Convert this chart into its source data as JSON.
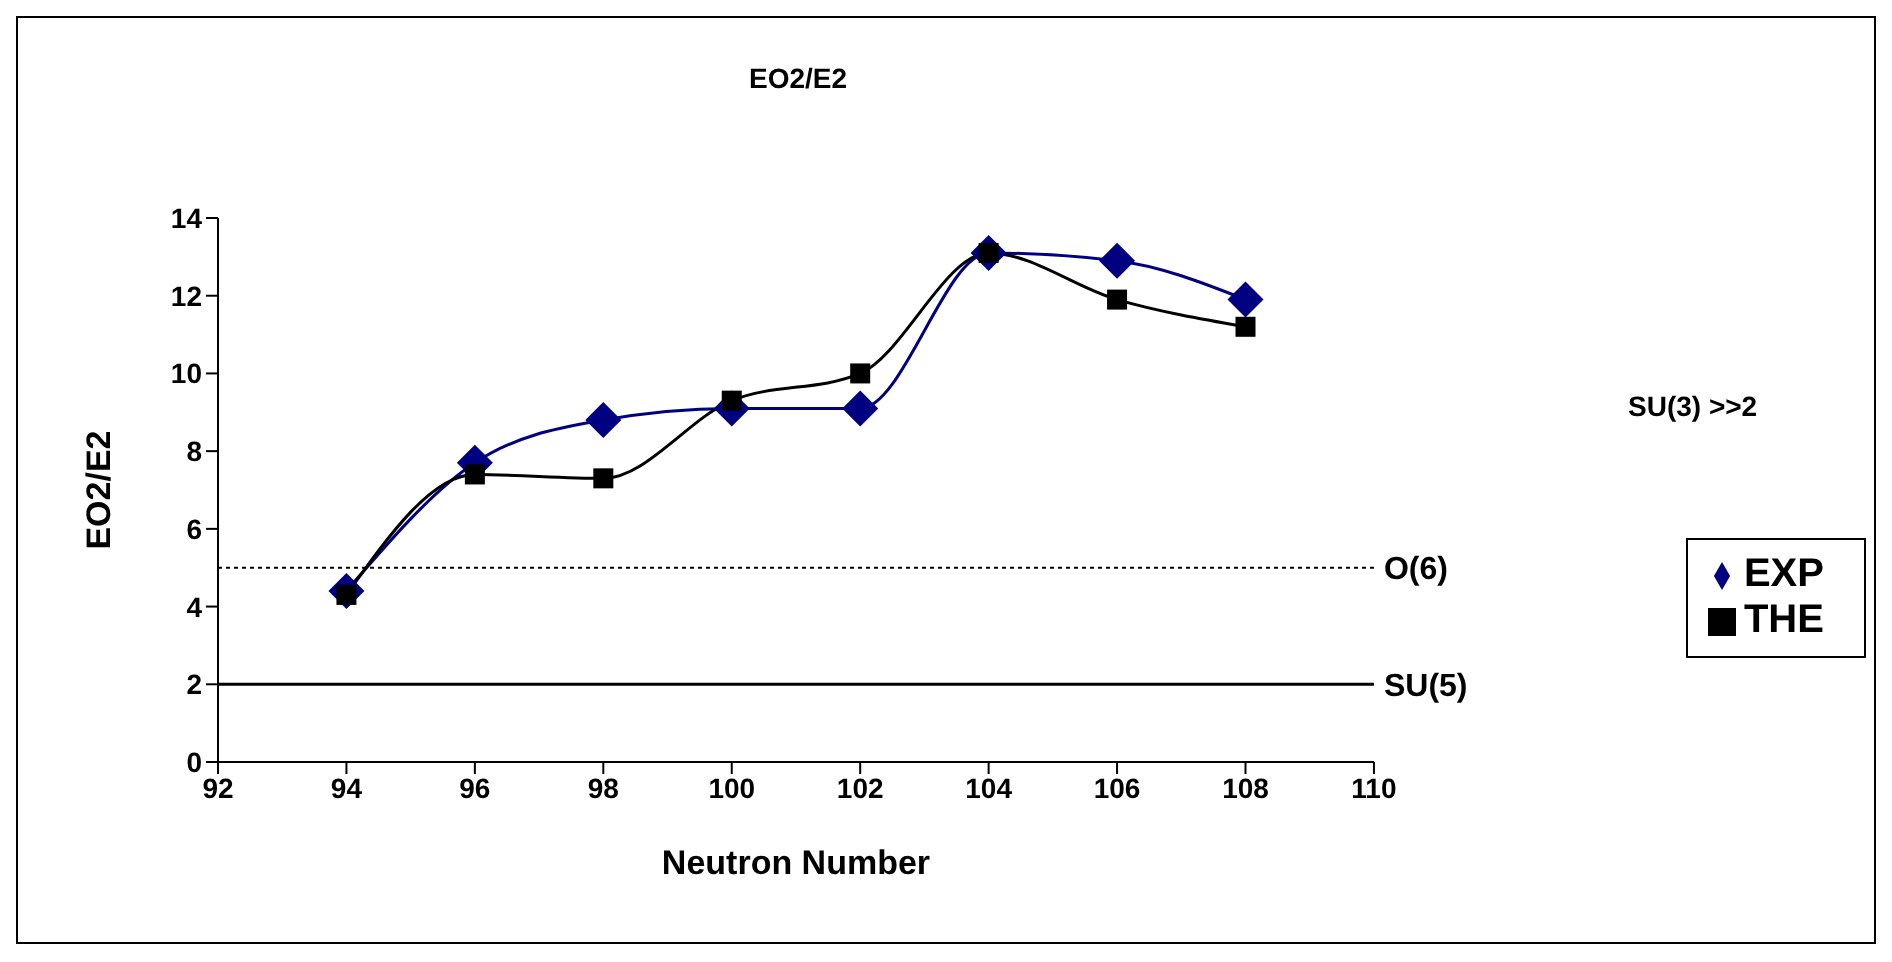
{
  "chart_data": {
    "type": "line",
    "title": "EO2/E2",
    "xlabel": "Neutron Number",
    "ylabel": "EO2/E2",
    "x": [
      94,
      96,
      98,
      100,
      102,
      104,
      106,
      108
    ],
    "series": [
      {
        "name": "EXP",
        "color": "#000080",
        "marker": "diamond",
        "values": [
          4.4,
          7.7,
          8.8,
          9.1,
          9.1,
          13.1,
          12.9,
          11.9
        ]
      },
      {
        "name": "THE",
        "color": "#000000",
        "marker": "square",
        "values": [
          4.3,
          7.4,
          7.3,
          9.3,
          10.0,
          13.1,
          11.9,
          11.2
        ]
      }
    ],
    "xlim": [
      92,
      110
    ],
    "xticks": [
      92,
      94,
      96,
      98,
      100,
      102,
      104,
      106,
      108,
      110
    ],
    "ylim": [
      0,
      14
    ],
    "yticks": [
      0,
      2,
      4,
      6,
      8,
      10,
      12,
      14
    ],
    "ref_lines": [
      {
        "axis": "y",
        "value": 5,
        "label": "O(6)",
        "line_style": "dotted",
        "color": "#000000"
      },
      {
        "axis": "y",
        "value": 2,
        "label": "SU(5)",
        "line_style": "solid",
        "color": "#000000"
      }
    ],
    "annotations": [
      "SU(3) >>2"
    ],
    "grid": false,
    "legend": "right"
  }
}
